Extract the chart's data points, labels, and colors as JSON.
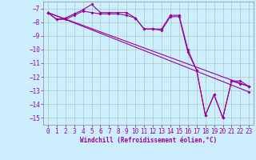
{
  "xlabel": "Windchill (Refroidissement éolien,°C)",
  "bg_color": "#cceeff",
  "grid_color": "#aaccbb",
  "line_color": "#990099",
  "spine_color": "#888888",
  "xlim": [
    -0.5,
    23.5
  ],
  "ylim": [
    -15.5,
    -6.5
  ],
  "yticks": [
    -7,
    -8,
    -9,
    -10,
    -11,
    -12,
    -13,
    -14,
    -15
  ],
  "xticks": [
    0,
    1,
    2,
    3,
    4,
    5,
    6,
    7,
    8,
    9,
    10,
    11,
    12,
    13,
    14,
    15,
    16,
    17,
    18,
    19,
    20,
    21,
    22,
    23
  ],
  "series1": [
    [
      0,
      -7.3
    ],
    [
      1,
      -7.8
    ],
    [
      2,
      -7.7
    ],
    [
      3,
      -7.4
    ],
    [
      4,
      -7.1
    ],
    [
      5,
      -6.7
    ],
    [
      6,
      -7.3
    ],
    [
      7,
      -7.3
    ],
    [
      8,
      -7.3
    ],
    [
      9,
      -7.3
    ],
    [
      10,
      -7.7
    ],
    [
      11,
      -8.5
    ],
    [
      12,
      -8.5
    ],
    [
      13,
      -8.5
    ],
    [
      14,
      -7.5
    ],
    [
      15,
      -7.5
    ],
    [
      16,
      -10.0
    ],
    [
      17,
      -11.5
    ],
    [
      18,
      -14.8
    ],
    [
      19,
      -13.3
    ],
    [
      20,
      -15.0
    ],
    [
      21,
      -12.3
    ],
    [
      22,
      -12.3
    ],
    [
      23,
      -12.7
    ]
  ],
  "series2": [
    [
      0,
      -7.3
    ],
    [
      1,
      -7.8
    ],
    [
      2,
      -7.8
    ],
    [
      3,
      -7.5
    ],
    [
      4,
      -7.2
    ],
    [
      5,
      -7.3
    ],
    [
      6,
      -7.4
    ],
    [
      7,
      -7.4
    ],
    [
      8,
      -7.4
    ],
    [
      9,
      -7.5
    ],
    [
      10,
      -7.7
    ],
    [
      11,
      -8.5
    ],
    [
      12,
      -8.5
    ],
    [
      13,
      -8.6
    ],
    [
      14,
      -7.6
    ],
    [
      15,
      -7.6
    ],
    [
      16,
      -10.2
    ],
    [
      17,
      -11.5
    ],
    [
      18,
      -14.8
    ],
    [
      19,
      -13.3
    ],
    [
      20,
      -15.0
    ],
    [
      21,
      -12.3
    ],
    [
      22,
      -12.5
    ],
    [
      23,
      -12.7
    ]
  ],
  "line_straight1": [
    [
      0,
      -7.3
    ],
    [
      23,
      -12.7
    ]
  ],
  "line_straight2": [
    [
      0,
      -7.3
    ],
    [
      23,
      -13.1
    ]
  ],
  "tick_fontsize": 5.5,
  "xlabel_fontsize": 5.5,
  "marker_size": 2.0,
  "line_width": 0.8
}
